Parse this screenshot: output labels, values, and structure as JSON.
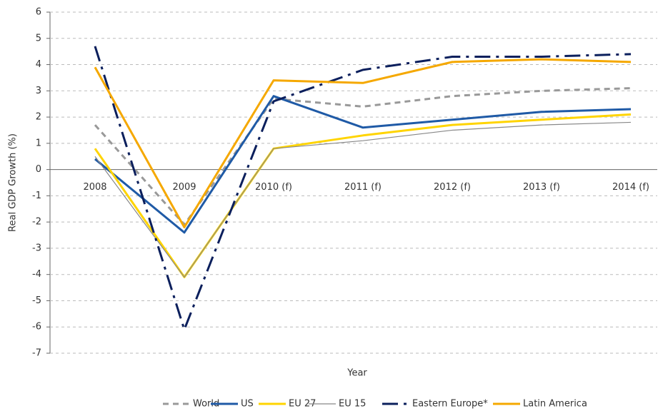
{
  "chart_data": {
    "type": "line",
    "x_label": "Year",
    "y_label": "Real GDP Growth (%)",
    "categories": [
      "2008",
      "2009",
      "2010 (f)",
      "2011 (f)",
      "2012 (f)",
      "2013 (f)",
      "2014 (f)"
    ],
    "series": [
      {
        "name": "World",
        "color": "#999999",
        "style": "dashed",
        "width": 3,
        "values": [
          1.7,
          -2.1,
          2.7,
          2.4,
          2.8,
          3.0,
          3.1
        ]
      },
      {
        "name": "US",
        "color": "#1f5aa6",
        "style": "solid",
        "width": 3,
        "values": [
          0.4,
          -2.4,
          2.8,
          1.6,
          1.9,
          2.2,
          2.3
        ]
      },
      {
        "name": "EU 27",
        "color": "#ffd400",
        "style": "solid",
        "width": 3,
        "values": [
          0.8,
          -4.1,
          0.8,
          1.3,
          1.7,
          1.9,
          2.1
        ]
      },
      {
        "name": "EU 15",
        "color": "#888888",
        "style": "solid",
        "width": 1.2,
        "values": [
          0.5,
          -4.1,
          0.8,
          1.1,
          1.5,
          1.7,
          1.8
        ]
      },
      {
        "name": "Eastern Europe*",
        "color": "#0b1f5c",
        "style": "dashdot",
        "width": 3,
        "values": [
          4.7,
          -6.1,
          2.6,
          3.8,
          4.3,
          4.3,
          4.4
        ]
      },
      {
        "name": "Latin America",
        "color": "#f5a800",
        "style": "solid",
        "width": 3,
        "values": [
          3.9,
          -2.2,
          3.4,
          3.3,
          4.1,
          4.2,
          4.1
        ]
      }
    ],
    "ylim": [
      -7,
      6
    ],
    "yticks": [
      -7,
      -6,
      -5,
      -4,
      -3,
      -2,
      -1,
      0,
      1,
      2,
      3,
      4,
      5,
      6
    ],
    "grid": true,
    "legend": "bottom"
  }
}
